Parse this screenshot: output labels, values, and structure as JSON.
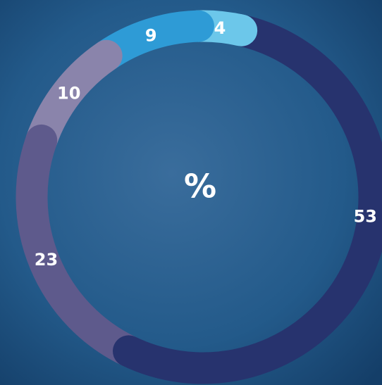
{
  "chart_data": {
    "type": "donut",
    "center_label": "%",
    "categories": [
      null,
      null,
      null,
      null,
      null
    ],
    "values": [
      53,
      23,
      10,
      9,
      4
    ],
    "colors": [
      "#27336e",
      "#5e5a8c",
      "#8a84ab",
      "#2e9bd6",
      "#6cc7ea"
    ]
  }
}
